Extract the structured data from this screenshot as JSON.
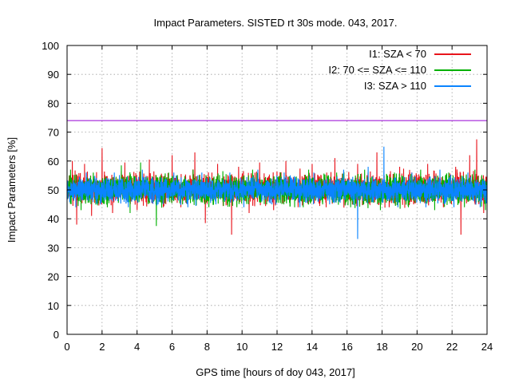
{
  "chart_data": {
    "type": "line",
    "title": "Impact Parameters. SISTED rt 30s mode. 043, 2017.",
    "xlabel": "GPS time [hours of doy 043, 2017]",
    "ylabel": "Impact Parameters [%]",
    "xlim": [
      0,
      24
    ],
    "ylim": [
      0,
      100
    ],
    "xticks": [
      "0",
      "2",
      "4",
      "6",
      "8",
      "10",
      "12",
      "14",
      "16",
      "18",
      "20",
      "22",
      "24"
    ],
    "yticks": [
      "0",
      "10",
      "20",
      "30",
      "40",
      "50",
      "60",
      "70",
      "80",
      "90",
      "100"
    ],
    "grid": true,
    "legend_position": "top-right",
    "reference_line": {
      "y": 74,
      "color": "#9400d3"
    },
    "series": [
      {
        "name": "I1: SZA < 70",
        "color": "#e8141c",
        "mean": 50,
        "typical_range": [
          43,
          58
        ],
        "extreme_range": [
          34.5,
          67.5
        ],
        "samples": [
          {
            "x": 0.1,
            "y": 48
          },
          {
            "x": 0.3,
            "y": 60
          },
          {
            "x": 0.55,
            "y": 38
          },
          {
            "x": 1.0,
            "y": 59
          },
          {
            "x": 1.4,
            "y": 41
          },
          {
            "x": 2.0,
            "y": 64.5
          },
          {
            "x": 2.6,
            "y": 42
          },
          {
            "x": 3.3,
            "y": 59.5
          },
          {
            "x": 4.0,
            "y": 43
          },
          {
            "x": 4.7,
            "y": 60.5
          },
          {
            "x": 5.5,
            "y": 44
          },
          {
            "x": 6.0,
            "y": 62
          },
          {
            "x": 6.5,
            "y": 44
          },
          {
            "x": 7.3,
            "y": 63
          },
          {
            "x": 7.9,
            "y": 38.5
          },
          {
            "x": 8.6,
            "y": 59
          },
          {
            "x": 9.4,
            "y": 34.5
          },
          {
            "x": 9.8,
            "y": 58
          },
          {
            "x": 10.4,
            "y": 42
          },
          {
            "x": 11.0,
            "y": 59.5
          },
          {
            "x": 11.8,
            "y": 43
          },
          {
            "x": 12.5,
            "y": 60
          },
          {
            "x": 13.2,
            "y": 44
          },
          {
            "x": 14.0,
            "y": 59
          },
          {
            "x": 14.8,
            "y": 44
          },
          {
            "x": 15.3,
            "y": 61
          },
          {
            "x": 15.9,
            "y": 45
          },
          {
            "x": 16.6,
            "y": 59
          },
          {
            "x": 17.3,
            "y": 45
          },
          {
            "x": 17.7,
            "y": 63
          },
          {
            "x": 18.4,
            "y": 44
          },
          {
            "x": 19.0,
            "y": 58
          },
          {
            "x": 19.8,
            "y": 45
          },
          {
            "x": 20.6,
            "y": 59
          },
          {
            "x": 21.5,
            "y": 44
          },
          {
            "x": 22.2,
            "y": 58
          },
          {
            "x": 22.5,
            "y": 34.5
          },
          {
            "x": 23.0,
            "y": 62
          },
          {
            "x": 23.4,
            "y": 67.5
          },
          {
            "x": 23.8,
            "y": 42
          }
        ]
      },
      {
        "name": "I2: 70 <= SZA <= 110",
        "color": "#00b000",
        "mean": 50,
        "typical_range": [
          43,
          57
        ],
        "extreme_range": [
          37.5,
          60.5
        ],
        "samples": [
          {
            "x": 0.2,
            "y": 57
          },
          {
            "x": 0.8,
            "y": 43
          },
          {
            "x": 1.5,
            "y": 56
          },
          {
            "x": 2.3,
            "y": 44
          },
          {
            "x": 3.1,
            "y": 58.5
          },
          {
            "x": 3.6,
            "y": 42
          },
          {
            "x": 4.2,
            "y": 59.5
          },
          {
            "x": 5.1,
            "y": 37.5
          },
          {
            "x": 5.8,
            "y": 56
          },
          {
            "x": 6.6,
            "y": 45
          },
          {
            "x": 7.2,
            "y": 57
          },
          {
            "x": 8.1,
            "y": 44
          },
          {
            "x": 8.9,
            "y": 56.5
          },
          {
            "x": 9.7,
            "y": 44
          },
          {
            "x": 10.6,
            "y": 57
          },
          {
            "x": 11.4,
            "y": 45
          },
          {
            "x": 12.2,
            "y": 56
          },
          {
            "x": 13.0,
            "y": 44
          },
          {
            "x": 13.8,
            "y": 57
          },
          {
            "x": 14.6,
            "y": 45
          },
          {
            "x": 15.4,
            "y": 56
          },
          {
            "x": 16.2,
            "y": 44
          },
          {
            "x": 17.0,
            "y": 57
          },
          {
            "x": 17.9,
            "y": 43
          },
          {
            "x": 18.7,
            "y": 56
          },
          {
            "x": 19.5,
            "y": 44
          },
          {
            "x": 20.2,
            "y": 57
          },
          {
            "x": 21.0,
            "y": 43
          },
          {
            "x": 21.8,
            "y": 56
          },
          {
            "x": 22.7,
            "y": 44
          },
          {
            "x": 23.3,
            "y": 57
          },
          {
            "x": 23.9,
            "y": 43
          }
        ]
      },
      {
        "name": "I3: SZA > 110",
        "color": "#0a84ff",
        "mean": 50,
        "typical_range": [
          44,
          56
        ],
        "extreme_range": [
          33,
          65
        ],
        "samples": [
          {
            "x": 0.0,
            "y": 51
          },
          {
            "x": 0.5,
            "y": 44
          },
          {
            "x": 1.1,
            "y": 56
          },
          {
            "x": 1.9,
            "y": 45
          },
          {
            "x": 2.7,
            "y": 56
          },
          {
            "x": 3.5,
            "y": 44
          },
          {
            "x": 4.3,
            "y": 57
          },
          {
            "x": 5.2,
            "y": 45
          },
          {
            "x": 6.1,
            "y": 56
          },
          {
            "x": 6.9,
            "y": 44
          },
          {
            "x": 7.7,
            "y": 56
          },
          {
            "x": 8.5,
            "y": 45
          },
          {
            "x": 9.3,
            "y": 56
          },
          {
            "x": 10.1,
            "y": 44
          },
          {
            "x": 10.9,
            "y": 57
          },
          {
            "x": 11.7,
            "y": 45
          },
          {
            "x": 12.4,
            "y": 56
          },
          {
            "x": 13.3,
            "y": 44
          },
          {
            "x": 14.1,
            "y": 56
          },
          {
            "x": 15.0,
            "y": 45
          },
          {
            "x": 15.8,
            "y": 57
          },
          {
            "x": 16.6,
            "y": 33
          },
          {
            "x": 17.2,
            "y": 58
          },
          {
            "x": 18.1,
            "y": 65
          },
          {
            "x": 18.9,
            "y": 44
          },
          {
            "x": 19.7,
            "y": 56
          },
          {
            "x": 20.5,
            "y": 44
          },
          {
            "x": 21.3,
            "y": 57
          },
          {
            "x": 22.1,
            "y": 44
          },
          {
            "x": 22.9,
            "y": 56
          },
          {
            "x": 23.6,
            "y": 44
          },
          {
            "x": 24.0,
            "y": 50
          }
        ]
      }
    ]
  }
}
